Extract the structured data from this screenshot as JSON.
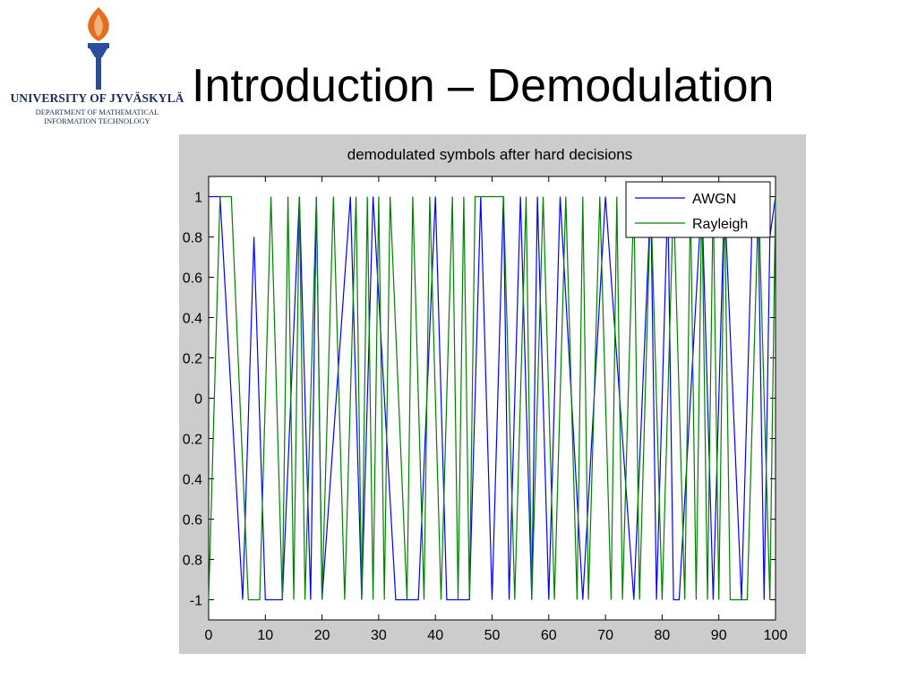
{
  "logo": {
    "university": "UNIVERSITY OF JYVÄSKYLÄ",
    "department_line1": "DEPARTMENT OF MATHEMATICAL",
    "department_line2": "INFORMATION TECHNOLOGY",
    "icon": "torch-icon",
    "colors": {
      "flame": "#e36f1e",
      "torch": "#2a4d9c"
    }
  },
  "slide": {
    "title": "Introduction – Demodulation"
  },
  "chart_data": {
    "type": "line",
    "title": "demodulated symbols after hard decisions",
    "xlabel": "",
    "ylabel": "",
    "xlim": [
      0,
      100
    ],
    "ylim": [
      -1.1,
      1.1
    ],
    "xticks": [
      0,
      10,
      20,
      30,
      40,
      50,
      60,
      70,
      80,
      90,
      100
    ],
    "yticks": [
      1,
      0.8,
      0.6,
      0.4,
      0.2,
      0,
      -0.2,
      -0.4,
      -0.6,
      -0.8,
      -1
    ],
    "ytick_labels": [
      "1",
      "0.8",
      "0.6",
      "0.4",
      "0.2",
      "0",
      "0.2",
      "0.4",
      "0.6",
      "0.8",
      "-1"
    ],
    "grid": false,
    "legend": "top-right",
    "series": [
      {
        "name": "AWGN",
        "color": "#0000ff",
        "x": [
          0,
          2,
          6,
          8,
          10,
          13,
          16,
          18,
          19,
          20,
          25,
          27,
          29,
          33,
          37,
          40,
          42,
          46,
          48,
          50,
          52,
          53,
          55,
          57,
          58,
          60,
          62,
          66,
          70,
          75,
          78,
          79,
          81,
          82,
          83,
          87,
          89,
          91,
          94,
          96,
          97,
          98,
          99,
          100
        ],
        "y": [
          1,
          1,
          -1,
          0.8,
          -1,
          -1,
          1,
          -1,
          1,
          -1,
          1,
          -1,
          1,
          -1,
          -1,
          1,
          -1,
          -1,
          1,
          -1,
          1,
          -1,
          1,
          -1,
          1,
          -1,
          1,
          -1,
          1,
          -1,
          1,
          -1,
          1,
          -1,
          -1,
          1,
          -1,
          1,
          -1,
          1,
          0.8,
          -1,
          0.8,
          1
        ]
      },
      {
        "name": "Rayleigh",
        "color": "#008000",
        "x": [
          0,
          2,
          4,
          7,
          9,
          11,
          13,
          14,
          15,
          16,
          17,
          19,
          20,
          22,
          24,
          26,
          27,
          28,
          29,
          30,
          31,
          32,
          35,
          36,
          38,
          39,
          41,
          43,
          44,
          45,
          46,
          47,
          49,
          52,
          54,
          56,
          57,
          59,
          61,
          63,
          65,
          66,
          67,
          69,
          71,
          72,
          73,
          75,
          76,
          78,
          80,
          82,
          84,
          85,
          86,
          87,
          88,
          89,
          90,
          91,
          92,
          93,
          95,
          97,
          99,
          100
        ],
        "y": [
          -1,
          1,
          1,
          -1,
          -1,
          1,
          -1,
          1,
          -1,
          1,
          -1,
          1,
          -1,
          1,
          -1,
          1,
          -1,
          1,
          -1,
          1,
          -1,
          1,
          -1,
          1,
          -1,
          1,
          -1,
          1,
          -1,
          1,
          -1,
          1,
          1,
          1,
          -1,
          1,
          -1,
          1,
          -1,
          1,
          -1,
          1,
          -1,
          1,
          -1,
          1,
          -1,
          1,
          -1,
          1,
          -1,
          1,
          -1,
          1,
          -1,
          1,
          -1,
          1,
          -1,
          1,
          -1,
          -1,
          -1,
          1,
          -1,
          1
        ]
      }
    ]
  }
}
